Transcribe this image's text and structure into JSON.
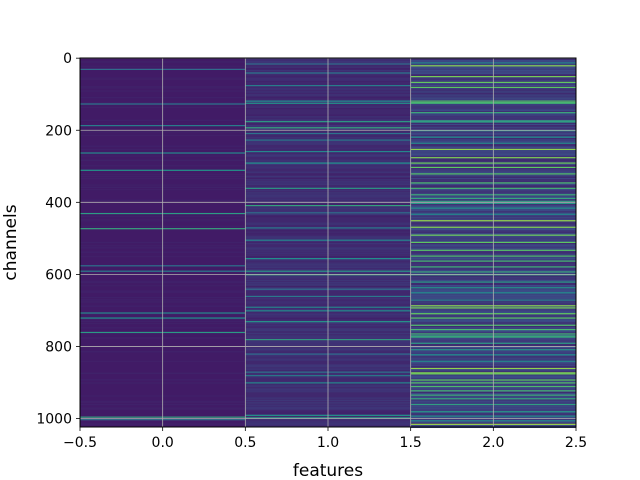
{
  "chart_data": {
    "type": "heatmap",
    "title": "",
    "xlabel": "features",
    "ylabel": "channels",
    "xlim": [
      -0.5,
      2.5
    ],
    "ylim": [
      1023.5,
      -0.5
    ],
    "x_ticks": [
      -0.5,
      0.0,
      0.5,
      1.0,
      1.5,
      2.0,
      2.5
    ],
    "x_tick_labels": [
      "−0.5",
      "0.0",
      "0.5",
      "1.0",
      "1.5",
      "2.0",
      "2.5"
    ],
    "y_ticks": [
      0,
      200,
      400,
      600,
      800,
      1000
    ],
    "y_tick_labels": [
      "0",
      "200",
      "400",
      "600",
      "800",
      "1000"
    ],
    "n_rows": 1024,
    "features": [
      0,
      1,
      2
    ],
    "colormap": "viridis",
    "color_range": [
      0.0,
      1.0
    ],
    "grid": true,
    "bright_rows": [
      {
        "feature": 0,
        "rows": [
          30,
          126,
          186,
          262,
          310,
          430,
          472,
          575,
          590,
          706,
          720,
          760,
          995,
          1002
        ]
      },
      {
        "feature": 1,
        "rows": [
          15,
          40,
          75,
          118,
          124,
          175,
          192,
          208,
          226,
          258,
          290,
          360,
          408,
          428,
          470,
          504,
          555,
          590,
          600,
          640,
          660,
          690,
          700,
          730,
          780,
          820,
          870,
          880,
          900,
          990,
          997
        ]
      },
      {
        "feature": 2,
        "rows": [
          12,
          20,
          50,
          66,
          80,
          118,
          122,
          124,
          150,
          173,
          176,
          200,
          218,
          235,
          252,
          275,
          290,
          302,
          320,
          345,
          360,
          378,
          388,
          396,
          402,
          415,
          432,
          450,
          468,
          490,
          510,
          532,
          548,
          562,
          578,
          592,
          600,
          620,
          636,
          650,
          670,
          686,
          692,
          708,
          720,
          740,
          752,
          764,
          770,
          773,
          790,
          808,
          822,
          840,
          860,
          872,
          875,
          892,
          900,
          910,
          922,
          934,
          944,
          960,
          980,
          992,
          1005,
          1015
        ]
      }
    ]
  }
}
